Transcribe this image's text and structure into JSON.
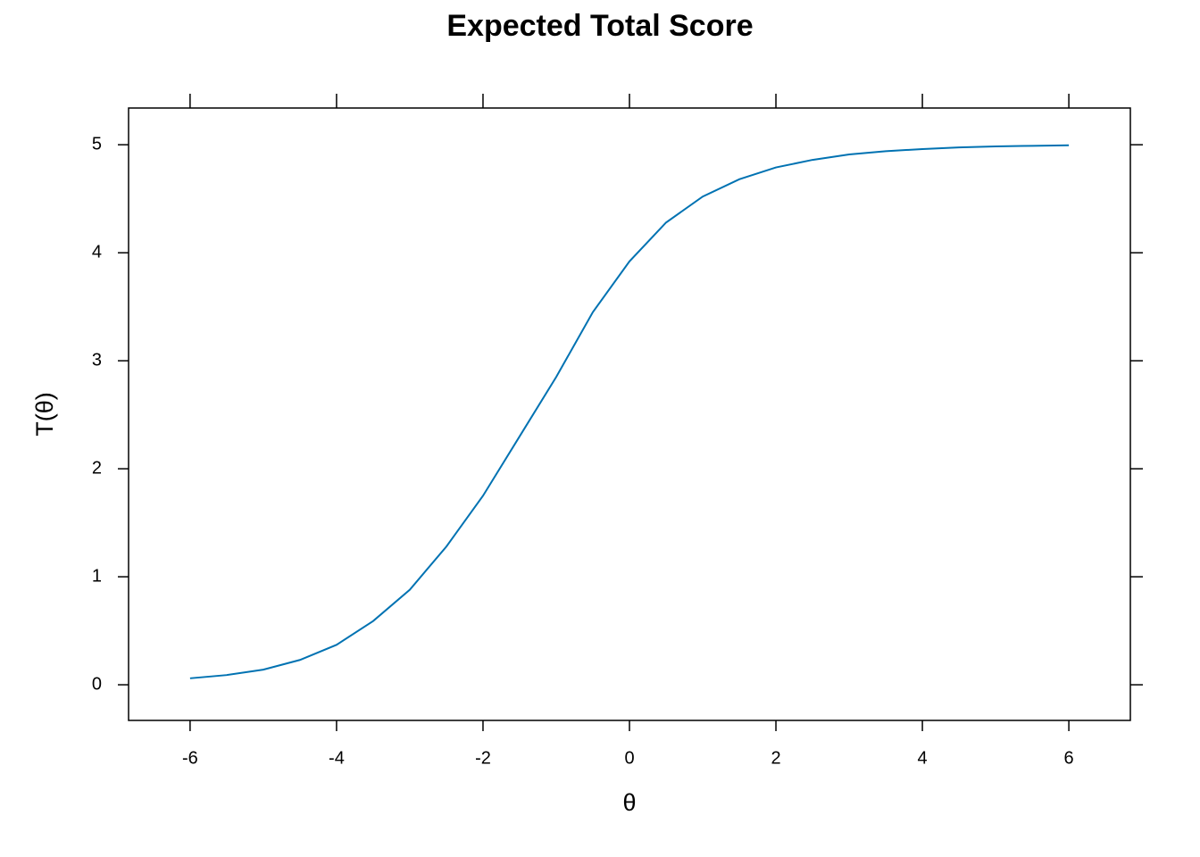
{
  "chart_data": {
    "type": "line",
    "title": "Expected Total Score",
    "x_label": "θ",
    "y_label": "T(θ)",
    "x": [
      -6,
      -5.5,
      -5,
      -4.5,
      -4,
      -3.5,
      -3,
      -2.5,
      -2,
      -1.5,
      -1,
      -0.5,
      0,
      0.5,
      1,
      1.5,
      2,
      2.5,
      3,
      3.5,
      4,
      4.5,
      5,
      5.5,
      6
    ],
    "series": [
      {
        "name": "T(θ)",
        "color": "#0072b2",
        "values": [
          0.06,
          0.09,
          0.14,
          0.23,
          0.37,
          0.59,
          0.88,
          1.28,
          1.75,
          2.3,
          2.85,
          3.45,
          3.92,
          4.28,
          4.52,
          4.68,
          4.79,
          4.86,
          4.91,
          4.94,
          4.96,
          4.975,
          4.985,
          4.99,
          4.995
        ]
      }
    ],
    "xlim": [
      -6.84,
      6.84
    ],
    "ylim": [
      -0.33,
      5.34
    ],
    "xticks": [
      -6,
      -4,
      -2,
      0,
      2,
      4,
      6
    ],
    "yticks": [
      0,
      1,
      2,
      3,
      4,
      5
    ]
  }
}
